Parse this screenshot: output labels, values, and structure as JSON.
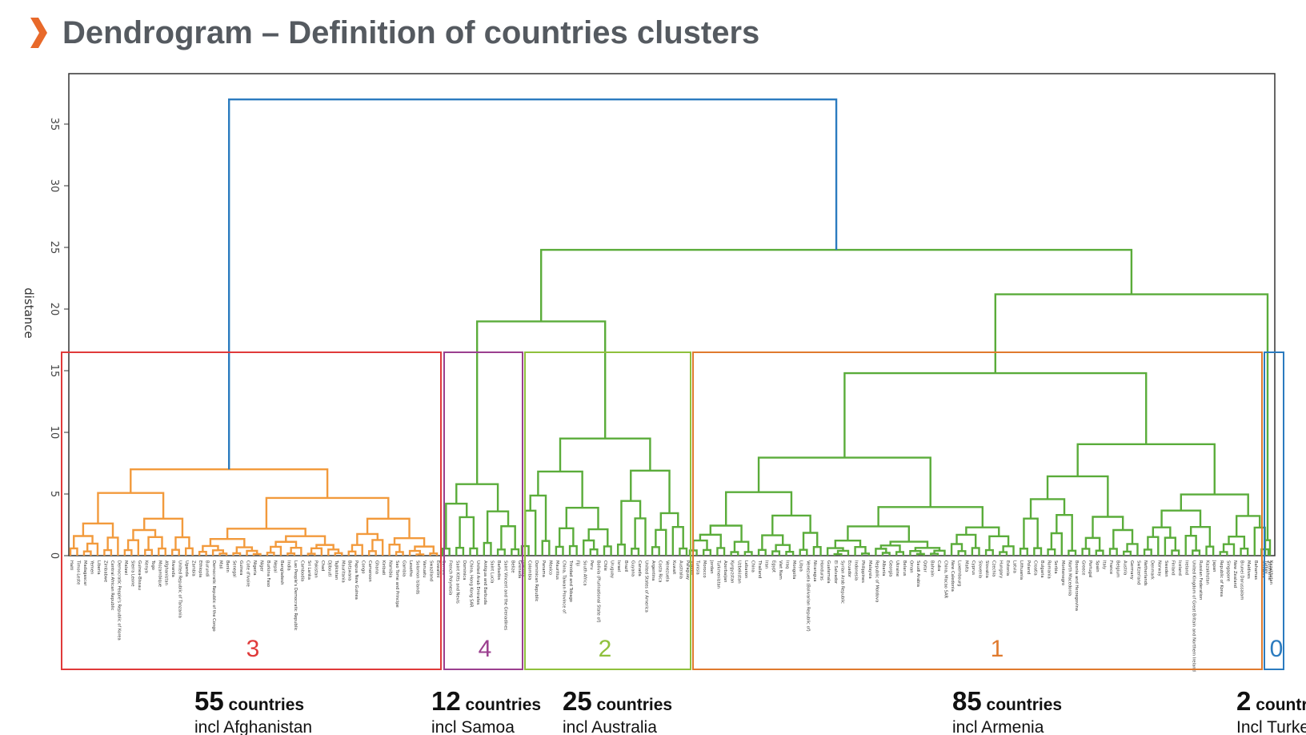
{
  "title": "Dendrogram – Definition of countries clusters",
  "chart_data": {
    "type": "dendrogram",
    "ylabel": "distance",
    "ylim": [
      0,
      37.5
    ],
    "yticks": [
      "0",
      "5",
      "10",
      "15",
      "20",
      "25",
      "30",
      "35"
    ],
    "cut_height": 16.5,
    "root_height": 37,
    "colors": {
      "c3": "#f29a3c",
      "c4": "#5aac3a",
      "c2": "#5aac3a",
      "c1": "#5aac3a",
      "c0": "#5aac3a",
      "above": "#2b7bbf",
      "frame": "#333333"
    },
    "merges": [
      {
        "id": "root",
        "height": 37,
        "left": "C3",
        "right": "G1",
        "color": "above"
      },
      {
        "id": "G1",
        "height": 24.8,
        "left": "G2",
        "right": "G3",
        "color": "c1"
      },
      {
        "id": "G2",
        "height": 19,
        "left": "C4",
        "right": "C2",
        "color": "c1"
      },
      {
        "id": "G3",
        "height": 21.2,
        "left": "C1",
        "right": "C0",
        "color": "c1"
      },
      {
        "id": "C3",
        "height": 7,
        "cluster": "3"
      },
      {
        "id": "C4",
        "height": 5.8,
        "cluster": "4"
      },
      {
        "id": "C2",
        "height": 9.5,
        "cluster": "2"
      },
      {
        "id": "C1",
        "height": 14.8,
        "cluster": "1"
      },
      {
        "id": "C0",
        "height": 14.8,
        "cluster": "0"
      }
    ],
    "clusters": [
      {
        "label": "3",
        "count": "55",
        "incl": "incl Afghanistan",
        "frame_color": "#e03a3a",
        "label_color": "#e03a3a",
        "leaves": [
          "Haiti",
          "Timor-Leste",
          "Madagascar",
          "Yemen",
          "Liberia",
          "Zimbabwe",
          "Central African Republic",
          "Democratic People's Republic of Korea",
          "Malawi",
          "Sierra Leone",
          "Guinea-Bissau",
          "Kenya",
          "Togo",
          "Mozambique",
          "Afghanistan",
          "Rwanda",
          "United Republic of Tanzania",
          "Uganda",
          "Zambia",
          "Ethiopia",
          "Burundi",
          "Democratic Republic of the Congo",
          "Mali",
          "Benin",
          "Senegal",
          "Guinea",
          "Cote d'Ivoire",
          "Nigeria",
          "Niger",
          "Burkina Faso",
          "Nepal",
          "Bangladesh",
          "India",
          "Lao People's Democratic Republic",
          "Cambodia",
          "Sri Lanka",
          "Pakistan",
          "Chad",
          "Djibouti",
          "Tajikistan",
          "Mauritania",
          "Botswana",
          "Papua New Guinea",
          "Congo",
          "Cameroon",
          "Ghana",
          "Kiribati",
          "Namibia",
          "Sao Tome and Principe",
          "Gambia",
          "Lesotho",
          "Solomon Islands",
          "Vanuatu",
          "Swaziland",
          "Eswatini"
        ]
      },
      {
        "label": "4",
        "count": "12",
        "incl": "incl Samoa",
        "frame_color": "#9b3f8f",
        "label_color": "#9b3f8f",
        "leaves": [
          "Samoa",
          "French Polynesia",
          "Saint Kitts and Nevis",
          "Dominica",
          "China, Hong Kong SAR",
          "United Arab Emirates",
          "Antigua and Barbuda",
          "Saint Lucia",
          "Barbados",
          "Saint Vincent and the Grenadines",
          "Belize",
          "Grenada"
        ]
      },
      {
        "label": "2",
        "count": "25",
        "incl": "incl Australia",
        "frame_color": "#8fc03c",
        "label_color": "#8fc03c",
        "leaves": [
          "Jamaica",
          "Colombia",
          "Dominican Republic",
          "Panama",
          "Mexico",
          "Mauritius",
          "China, Taiwan Province of",
          "Trinidad and Tobago",
          "Fiji",
          "South Africa",
          "Peru",
          "Bolivia (Plurinational State of)",
          "Chile",
          "Uruguay",
          "Israel",
          "Brazil",
          "Guyana",
          "Canada",
          "United States of America",
          "Argentina",
          "Costa Rica",
          "Venezuela",
          "Kuwait",
          "Australia",
          "Paraguay"
        ]
      },
      {
        "label": "1",
        "count": "85",
        "incl": "incl Armenia",
        "frame_color": "#e07a2e",
        "label_color": "#e07a2e",
        "leaves": [
          "Algeria",
          "Tunisia",
          "Morocco",
          "Jordan",
          "Turkmenistan",
          "Azerbaijan",
          "Kyrgyzstan",
          "Uzbekistan",
          "Lebanon",
          "China",
          "Thailand",
          "Iran",
          "Egypt",
          "Viet Nam",
          "Iraq",
          "Mongolia",
          "Libya",
          "Venezuela (Bolivarian Republic of)",
          "Nicaragua",
          "Honduras",
          "Guatemala",
          "El Salvador",
          "Syrian Arab Republic",
          "Ecuador",
          "Indonesia",
          "Philippines",
          "Malaysia",
          "Republic of Moldova",
          "Albania",
          "Georgia",
          "Ukraine",
          "Belarus",
          "Oman",
          "Saudi Arabia",
          "Qatar",
          "Bahrain",
          "Cuba",
          "China, Macao SAR",
          "New Caledonia",
          "Luxembourg",
          "Malta",
          "Cyprus",
          "Slovenia",
          "Slovakia",
          "Czechia",
          "Hungary",
          "Estonia",
          "Latvia",
          "Lithuania",
          "Poland",
          "Croatia",
          "Bulgaria",
          "Romania",
          "Serbia",
          "Montenegro",
          "North Macedonia",
          "Bosnia and Herzegovina",
          "Greece",
          "Portugal",
          "Spain",
          "Italy",
          "France",
          "Belgium",
          "Austria",
          "Germany",
          "Switzerland",
          "Netherlands",
          "Denmark",
          "Norway",
          "Sweden",
          "Finland",
          "Iceland",
          "Ireland",
          "United Kingdom of Great Britain and Northern Ireland",
          "Russian Federation",
          "Kazakhstan",
          "Japan",
          "Republic of Korea",
          "Singapore",
          "New Zealand",
          "Brunei Darussalam",
          "Maldives",
          "Bahamas",
          "Armenia",
          "Suriname"
        ]
      },
      {
        "label": "0",
        "count": "2",
        "incl": "Incl Turkey",
        "frame_color": "#2b7bbf",
        "label_color": "#2b7bbf",
        "leaves": [
          "Turkey",
          "Kazakhstan"
        ]
      }
    ]
  }
}
